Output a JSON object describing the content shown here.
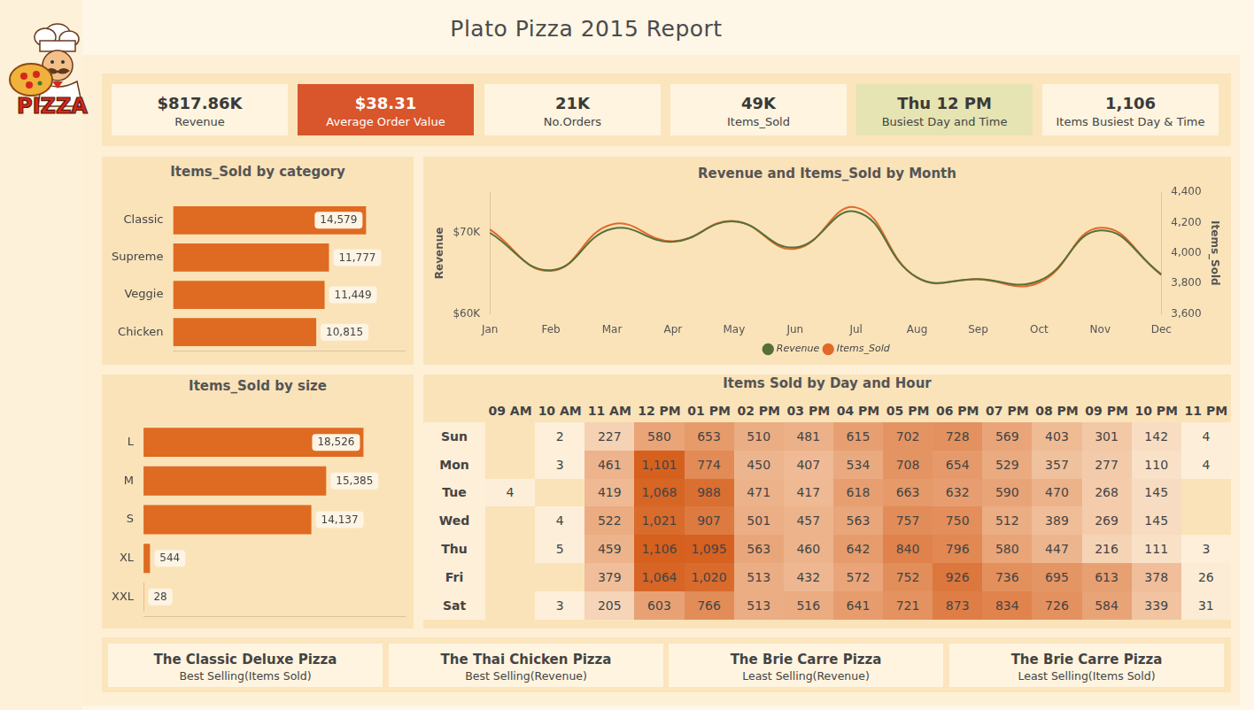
{
  "title": "Plato Pizza 2015 Report",
  "logo_text": "PIZZA",
  "kpis": [
    {
      "value": "$817.86K",
      "label": "Revenue"
    },
    {
      "value": "$38.31",
      "label": "Average Order Value"
    },
    {
      "value": "21K",
      "label": "No.Orders"
    },
    {
      "value": "49K",
      "label": "Items_Sold"
    },
    {
      "value": "Thu 12 PM",
      "label": "Busiest Day and Time"
    },
    {
      "value": "1,106",
      "label": "Items Busiest Day & Time"
    }
  ],
  "chart_data": [
    {
      "type": "bar",
      "title": "Items_Sold by category",
      "orientation": "horizontal",
      "categories": [
        "Classic",
        "Supreme",
        "Veggie",
        "Chicken"
      ],
      "values": [
        14579,
        11777,
        11449,
        10815
      ],
      "value_labels": [
        "14,579",
        "11,777",
        "11,449",
        "10,815"
      ],
      "color": "#df6a22",
      "xlim": [
        0,
        17500
      ],
      "data_labels": true,
      "tick_labels": "y",
      "grid": false
    },
    {
      "type": "bar",
      "title": "Items_Sold by size",
      "orientation": "horizontal",
      "categories": [
        "L",
        "M",
        "S",
        "XL",
        "XXL"
      ],
      "values": [
        18526,
        15385,
        14137,
        544,
        28
      ],
      "value_labels": [
        "18,526",
        "15,385",
        "14,137",
        "544",
        "28"
      ],
      "color": "#df6a22",
      "xlim": [
        0,
        22000
      ],
      "data_labels": true,
      "tick_labels": "y",
      "grid": false
    },
    {
      "type": "line",
      "title": "Revenue and Items_Sold by Month",
      "categories": [
        "Jan",
        "Feb",
        "Mar",
        "Apr",
        "May",
        "Jun",
        "Jul",
        "Aug",
        "Sep",
        "Oct",
        "Nov",
        "Dec"
      ],
      "series": [
        {
          "name": "Revenue",
          "color": "#56703a",
          "values": [
            70000,
            65400,
            70500,
            68900,
            71400,
            68200,
            72600,
            64500,
            64300,
            64100,
            70300,
            64900
          ]
        },
        {
          "name": "Items_Sold",
          "color": "#e2692a",
          "axis": "y2",
          "values": [
            4156,
            3883,
            4189,
            4078,
            4211,
            4028,
            4300,
            3839,
            3828,
            3806,
            4167,
            3856
          ]
        }
      ],
      "ylabel": "Revenue",
      "y2label": "Items_Sold",
      "ylim": [
        60000,
        75000
      ],
      "yticks": [
        {
          "value": 60000,
          "label": "$60K"
        },
        {
          "value": 70000,
          "label": "$70K"
        }
      ],
      "y2lim": [
        3600,
        4400
      ],
      "y2ticks": [
        {
          "value": 3600,
          "label": "3,600"
        },
        {
          "value": 3800,
          "label": "3,800"
        },
        {
          "value": 4000,
          "label": "4,000"
        },
        {
          "value": 4200,
          "label": "4,200"
        },
        {
          "value": 4400,
          "label": "4,400"
        }
      ],
      "legend": "bottom",
      "grid": false,
      "marker": "none",
      "line_style": "solid"
    }
  ],
  "heatmap": {
    "title": "Items Sold by Day and Hour",
    "columns": [
      "09 AM",
      "10 AM",
      "11 AM",
      "12 PM",
      "01 PM",
      "02 PM",
      "03 PM",
      "04 PM",
      "05 PM",
      "06 PM",
      "07 PM",
      "08 PM",
      "09 PM",
      "10 PM",
      "11 PM"
    ],
    "rows": [
      "Sun",
      "Mon",
      "Tue",
      "Wed",
      "Thu",
      "Fri",
      "Sat"
    ],
    "values": [
      [
        null,
        2,
        227,
        580,
        653,
        510,
        481,
        615,
        702,
        728,
        569,
        403,
        301,
        142,
        4
      ],
      [
        null,
        3,
        461,
        1101,
        774,
        450,
        407,
        534,
        708,
        654,
        529,
        357,
        277,
        110,
        4
      ],
      [
        4,
        null,
        419,
        1068,
        988,
        471,
        417,
        618,
        663,
        632,
        590,
        470,
        268,
        145,
        null
      ],
      [
        null,
        4,
        522,
        1021,
        907,
        501,
        457,
        563,
        757,
        750,
        512,
        389,
        269,
        145,
        null
      ],
      [
        null,
        5,
        459,
        1106,
        1095,
        563,
        460,
        642,
        840,
        796,
        580,
        447,
        216,
        111,
        3
      ],
      [
        null,
        null,
        379,
        1064,
        1020,
        513,
        432,
        572,
        752,
        926,
        736,
        695,
        613,
        378,
        26
      ],
      [
        null,
        3,
        205,
        603,
        766,
        513,
        516,
        641,
        721,
        873,
        834,
        726,
        584,
        339,
        31
      ]
    ],
    "value_labels": [
      [
        null,
        "2",
        "227",
        "580",
        "653",
        "510",
        "481",
        "615",
        "702",
        "728",
        "569",
        "403",
        "301",
        "142",
        "4"
      ],
      [
        null,
        "3",
        "461",
        "1,101",
        "774",
        "450",
        "407",
        "534",
        "708",
        "654",
        "529",
        "357",
        "277",
        "110",
        "4"
      ],
      [
        "4",
        null,
        "419",
        "1,068",
        "988",
        "471",
        "417",
        "618",
        "663",
        "632",
        "590",
        "470",
        "268",
        "145",
        null
      ],
      [
        null,
        "4",
        "522",
        "1,021",
        "907",
        "501",
        "457",
        "563",
        "757",
        "750",
        "512",
        "389",
        "269",
        "145",
        null
      ],
      [
        null,
        "5",
        "459",
        "1,106",
        "1,095",
        "563",
        "460",
        "642",
        "840",
        "796",
        "580",
        "447",
        "216",
        "111",
        "3"
      ],
      [
        null,
        null,
        "379",
        "1,064",
        "1,020",
        "513",
        "432",
        "572",
        "752",
        "926",
        "736",
        "695",
        "613",
        "378",
        "26"
      ],
      [
        null,
        "3",
        "205",
        "603",
        "766",
        "513",
        "516",
        "641",
        "721",
        "873",
        "834",
        "726",
        "584",
        "339",
        "31"
      ]
    ]
  },
  "footer_cards": [
    {
      "title": "The Classic Deluxe Pizza",
      "subtitle": "Best Selling(Items Sold)"
    },
    {
      "title": "The Thai Chicken Pizza",
      "subtitle": "Best Selling(Revenue)"
    },
    {
      "title": "The Brie Carre Pizza",
      "subtitle": "Least Selling(Revenue)"
    },
    {
      "title": "The Brie Carre Pizza",
      "subtitle": "Least Selling(Items Sold)"
    }
  ]
}
